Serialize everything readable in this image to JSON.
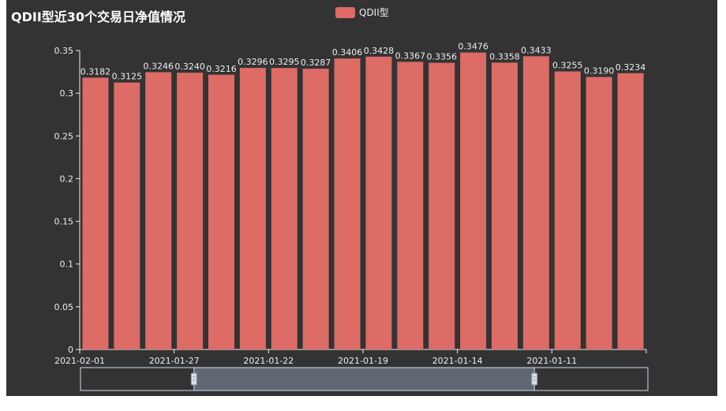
{
  "title": "QDII型近30个交易日净值情况",
  "legend": {
    "label": "QDII型"
  },
  "colors": {
    "background": "#333333",
    "bar": "#dd6b66",
    "axis": "#eeeeee",
    "slider_fill": "#5f6772",
    "slider_border": "#d2dbee"
  },
  "chart_data": {
    "type": "bar",
    "title": "QDII型近30个交易日净值情况",
    "xlabel": "",
    "ylabel": "",
    "ylim": [
      0,
      0.35
    ],
    "yticks": [
      "0",
      "0.05",
      "0.1",
      "0.15",
      "0.2",
      "0.25",
      "0.3",
      "0.35"
    ],
    "categories": [
      "2021-02-01",
      "",
      "",
      "2021-01-27",
      "",
      "",
      "2021-01-22",
      "",
      "",
      "2021-01-19",
      "",
      "",
      "2021-01-14",
      "",
      "",
      "2021-01-11",
      "",
      ""
    ],
    "xtick_labels": [
      "2021-02-01",
      "2021-01-27",
      "2021-01-22",
      "2021-01-19",
      "2021-01-14",
      "2021-01-11"
    ],
    "series": [
      {
        "name": "QDII型",
        "values": [
          0.3182,
          0.3125,
          0.3246,
          0.324,
          0.3216,
          0.3296,
          0.3295,
          0.3287,
          0.3406,
          0.3428,
          0.3367,
          0.3356,
          0.3476,
          0.3358,
          0.3433,
          0.3255,
          0.319,
          0.3234
        ],
        "labels": [
          "0.3182",
          "0.3125",
          "0.3246",
          "0.3240",
          "0.3216",
          "0.3296",
          "0.3295",
          "0.3287",
          "0.3406",
          "0.3428",
          "0.3367",
          "0.3356",
          "0.3476",
          "0.3358",
          "0.3433",
          "0.3255",
          "0.3190",
          "0.3234"
        ]
      }
    ],
    "grid": false,
    "legend_position": "top-center",
    "data_zoom": {
      "start": 0.2,
      "end": 0.8
    }
  }
}
